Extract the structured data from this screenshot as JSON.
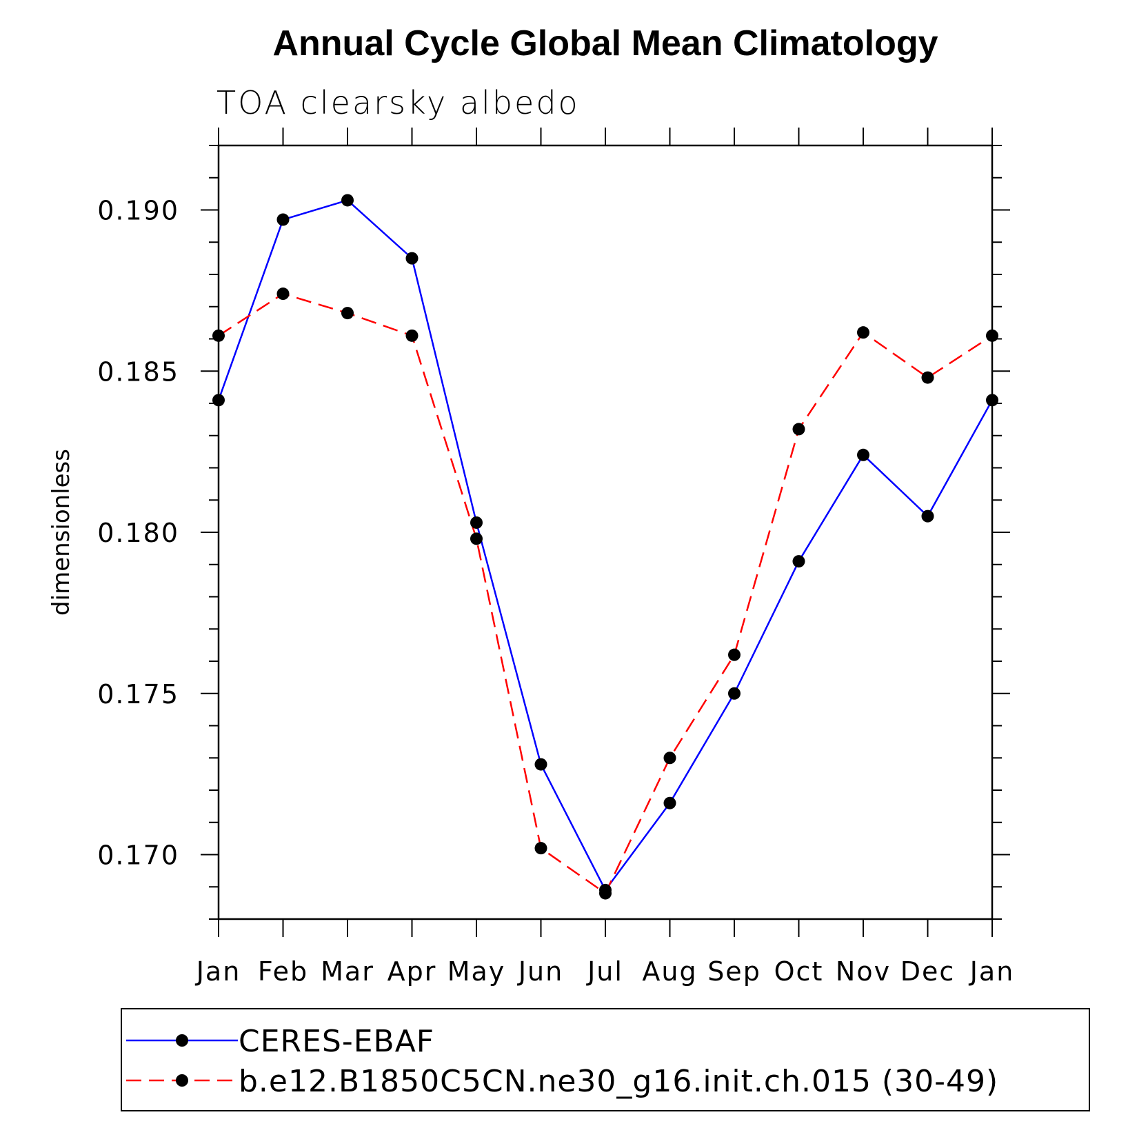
{
  "chart_data": {
    "type": "line",
    "title": "Annual Cycle Global Mean Climatology",
    "subtitle": "TOA clearsky albedo",
    "xlabel": "",
    "ylabel": "dimensionless",
    "categories": [
      "Jan",
      "Feb",
      "Mar",
      "Apr",
      "May",
      "Jun",
      "Jul",
      "Aug",
      "Sep",
      "Oct",
      "Nov",
      "Dec",
      "Jan"
    ],
    "ylim": [
      0.168,
      0.192
    ],
    "yticks": [
      0.17,
      0.175,
      0.18,
      0.185,
      0.19
    ],
    "ytick_labels": [
      "0.170",
      "0.175",
      "0.180",
      "0.185",
      "0.190"
    ],
    "grid": false,
    "legend_position": "bottom",
    "series": [
      {
        "name": "CERES-EBAF",
        "color": "#0000ff",
        "style": "solid",
        "marker": "filled-circle",
        "values": [
          0.1841,
          0.1897,
          0.1903,
          0.1885,
          0.1803,
          0.1728,
          0.1689,
          0.1716,
          0.175,
          0.1791,
          0.1824,
          0.1805,
          0.1841
        ]
      },
      {
        "name": "b.e12.B1850C5CN.ne30_g16.init.ch.015 (30-49)",
        "color": "#ff0000",
        "style": "dashed",
        "marker": "filled-circle",
        "values": [
          0.1861,
          0.1874,
          0.1868,
          0.1861,
          0.1798,
          0.1702,
          0.1688,
          0.173,
          0.1762,
          0.1832,
          0.1862,
          0.1848,
          0.1861
        ]
      }
    ]
  }
}
